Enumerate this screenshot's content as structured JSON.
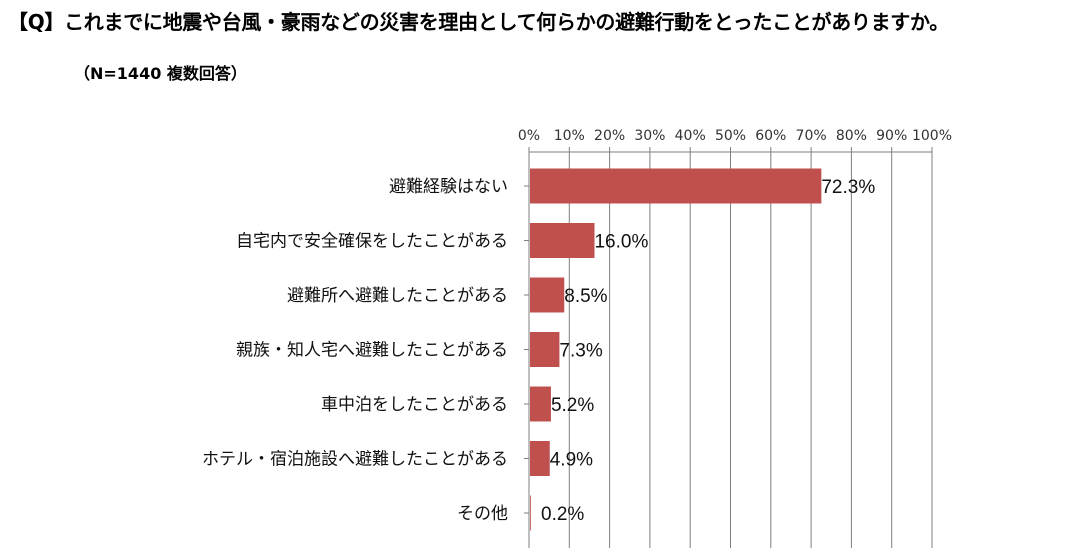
{
  "header": {
    "question": "【Q】これまでに地震や台風・豪雨などの災害を理由として何らかの避難行動をとったことがありますか。",
    "note": "（N=1440 複数回答）"
  },
  "colors": {
    "bar": "#c0504d",
    "grid": "#7f7f7f",
    "axis": "#7f7f7f"
  },
  "chart_data": {
    "type": "bar",
    "orientation": "horizontal",
    "categories": [
      "避難経験はない",
      "自宅内で安全確保をしたことがある",
      "避難所へ避難したことがある",
      "親族・知人宅へ避難したことがある",
      "車中泊をしたことがある",
      "ホテル・宿泊施設へ避難したことがある",
      "その他"
    ],
    "values": [
      72.3,
      16.0,
      8.5,
      7.3,
      5.2,
      4.9,
      0.2
    ],
    "value_labels": [
      "72.3%",
      "16.0%",
      "8.5%",
      "7.3%",
      "5.2%",
      "4.9%",
      "0.2%"
    ],
    "xlim": [
      0,
      100
    ],
    "x_ticks": [
      "0%",
      "10%",
      "20%",
      "30%",
      "40%",
      "50%",
      "60%",
      "70%",
      "80%",
      "90%",
      "100%"
    ],
    "x_axis_position": "top",
    "grid": true
  }
}
